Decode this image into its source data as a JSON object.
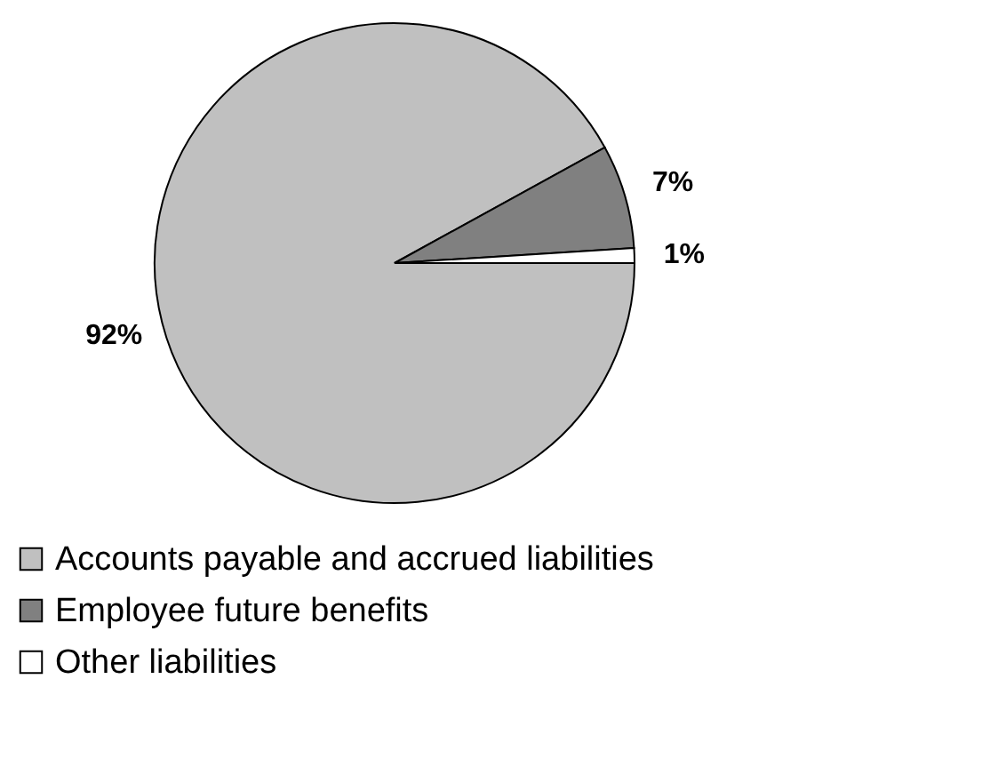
{
  "chart_data": {
    "type": "pie",
    "categories": [
      "Accounts payable and accrued liabilities",
      "Employee future benefits",
      "Other liabilities"
    ],
    "values": [
      92,
      7,
      1
    ],
    "colors": [
      "#c0c0c0",
      "#808080",
      "#ffffff"
    ],
    "value_labels": [
      "92%",
      "7%",
      "1%"
    ],
    "legend": "bottom"
  }
}
